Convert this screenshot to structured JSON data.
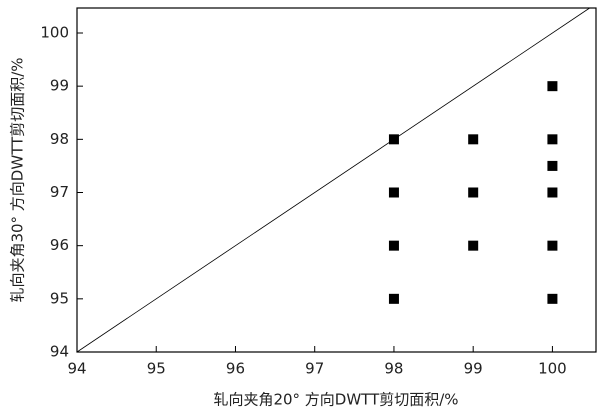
{
  "chart_data": {
    "type": "scatter",
    "x_label": "轧向夹角20° 方向DWTT剪切面积/%",
    "y_label": "轧向夹角30° 方向DWTT剪切面积/%",
    "x": [
      98,
      98,
      98,
      98,
      99,
      99,
      99,
      100,
      100,
      100,
      100,
      100,
      100
    ],
    "series": [
      {
        "color": "#000000",
        "values": [
          98,
          97,
          96,
          95,
          98,
          97,
          96,
          99,
          98,
          97.5,
          97,
          96,
          95
        ]
      }
    ],
    "xlim": [
      94,
      100.55
    ],
    "ylim": [
      94,
      100.47
    ],
    "xticks": [
      94,
      95,
      96,
      97,
      98,
      99,
      100
    ],
    "yticks": [
      94,
      95,
      96,
      97,
      98,
      99,
      100
    ],
    "diagonal": true
  }
}
